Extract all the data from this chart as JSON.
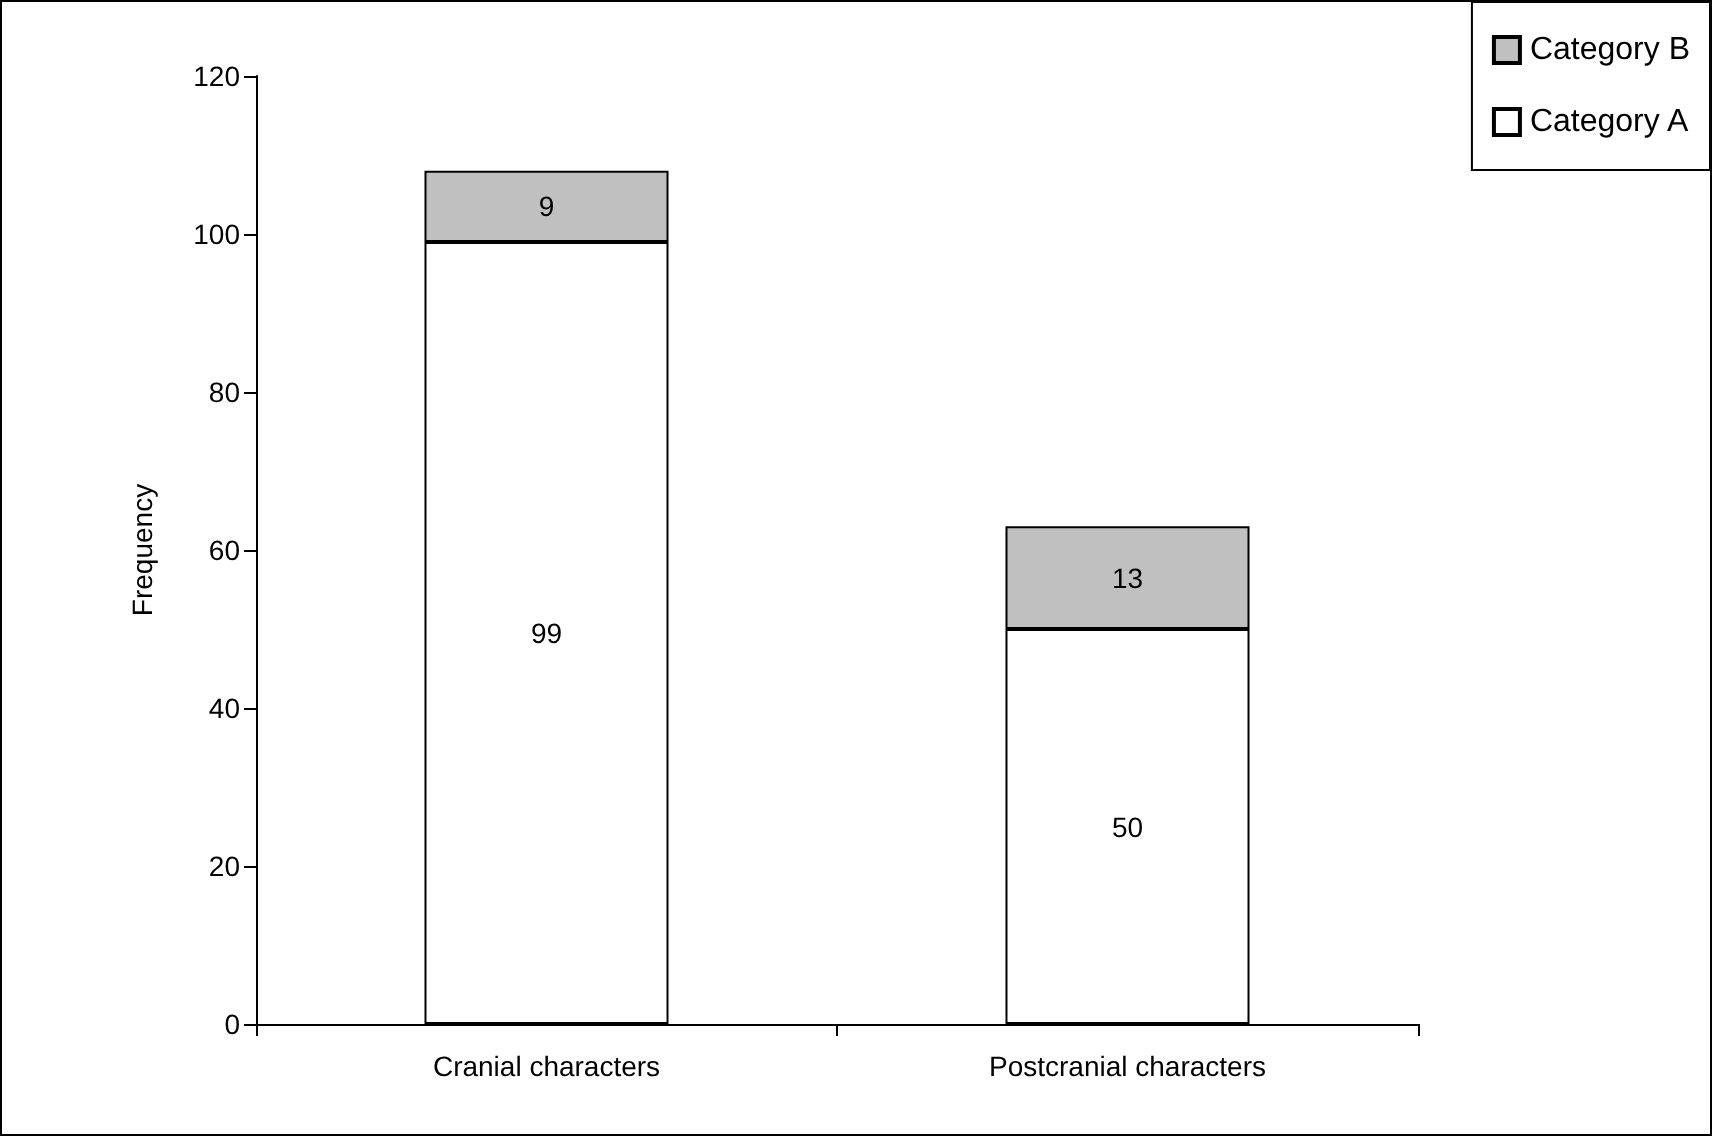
{
  "chart_data": {
    "type": "bar",
    "ylabel": "Frequency",
    "categories": [
      "Cranial characters",
      "Postcranial characters"
    ],
    "series": [
      {
        "name": "Category A",
        "color": "#ffffff",
        "values": [
          99,
          50
        ]
      },
      {
        "name": "Category B",
        "color": "#c0c0c0",
        "values": [
          9,
          13
        ]
      }
    ],
    "stacked": true,
    "data_labels": true,
    "ylim": [
      0,
      120
    ],
    "yticks": [
      0,
      20,
      40,
      60,
      80,
      100,
      120
    ],
    "grid": false,
    "legend": "top right"
  }
}
